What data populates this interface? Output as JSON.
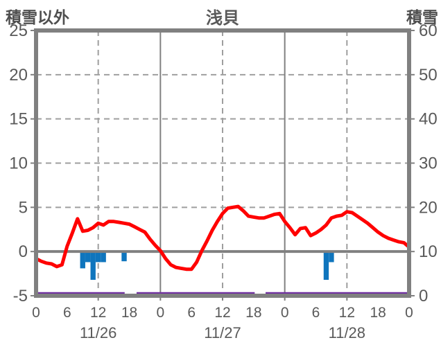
{
  "header": {
    "left_axis_title": "積雪以外",
    "chart_title": "浅貝",
    "right_axis_title": "積雪"
  },
  "colors": {
    "background": "#ffffff",
    "axis_border": "#808080",
    "grid_dashed": "#9e9e9e",
    "day_divider": "#808080",
    "zero_line": "#808080",
    "tick_label": "#595959",
    "temperature_red": "#ff0000",
    "precipitation_blue": "#0f75bd",
    "snow_purple": "#7030a0"
  },
  "chart_data": {
    "type": "line",
    "title": "浅貝",
    "left_axis": {
      "title": "積雪以外",
      "min": -5,
      "max": 25,
      "ticks": [
        25,
        20,
        15,
        10,
        5,
        0,
        -5
      ],
      "dashed_gridline_values": [
        20,
        15,
        10,
        5
      ],
      "zero_line_value": 0
    },
    "right_axis": {
      "title": "積雪",
      "min": 0,
      "max": 60,
      "ticks": [
        60,
        50,
        40,
        30,
        20,
        10,
        0
      ]
    },
    "x_axis": {
      "total_hours": 72,
      "hours_per_day": 24,
      "day_labels": [
        "11/26",
        "11/27",
        "11/28"
      ],
      "hour_tick_labels": [
        0,
        6,
        12,
        18
      ],
      "closing_hour_label": 0,
      "dashed_gridline_hours": [
        12,
        36,
        60
      ],
      "solid_gridline_hours": [
        24,
        48
      ]
    },
    "series": [
      {
        "name": "temperature-line",
        "type": "line",
        "axis": "left",
        "color_key": "temperature_red",
        "hourly_values": [
          -0.8,
          -1.1,
          -1.3,
          -1.4,
          -1.7,
          -1.5,
          0.6,
          2.1,
          3.7,
          2.3,
          2.4,
          2.7,
          3.2,
          3.0,
          3.4,
          3.4,
          3.3,
          3.2,
          3.1,
          2.8,
          2.5,
          2.2,
          1.4,
          0.7,
          0.1,
          -0.8,
          -1.5,
          -1.8,
          -1.9,
          -2.0,
          -2.0,
          -1.2,
          0.1,
          1.2,
          2.4,
          3.4,
          4.3,
          4.9,
          5.0,
          5.1,
          4.6,
          4.0,
          3.9,
          3.8,
          3.8,
          4.0,
          4.2,
          4.3,
          3.4,
          2.7,
          1.9,
          2.6,
          2.7,
          1.8,
          2.1,
          2.5,
          3.0,
          3.8,
          4.0,
          4.1,
          4.5,
          4.4,
          4.0,
          3.6,
          3.2,
          2.7,
          2.2,
          1.8,
          1.5,
          1.3,
          1.1,
          1.0,
          0.5
        ]
      },
      {
        "name": "precipitation-bars",
        "type": "bar",
        "axis": "left",
        "color_key": "precipitation_blue",
        "points": [
          {
            "hour": 9,
            "value": -1.9
          },
          {
            "hour": 10,
            "value": -1.2
          },
          {
            "hour": 11,
            "value": -3.2
          },
          {
            "hour": 12,
            "value": -1.2
          },
          {
            "hour": 13,
            "value": -1.2
          },
          {
            "hour": 17,
            "value": -1.1
          },
          {
            "hour": 56,
            "value": -3.2
          },
          {
            "hour": 57,
            "value": -1.2
          }
        ]
      },
      {
        "name": "snow-depth-line",
        "type": "line",
        "axis": "right",
        "color_key": "snow_purple",
        "constant_value": 0,
        "segments_hours": [
          [
            0,
            17.1
          ],
          [
            19.4,
            42.2
          ],
          [
            44.3,
            72
          ]
        ]
      }
    ]
  }
}
